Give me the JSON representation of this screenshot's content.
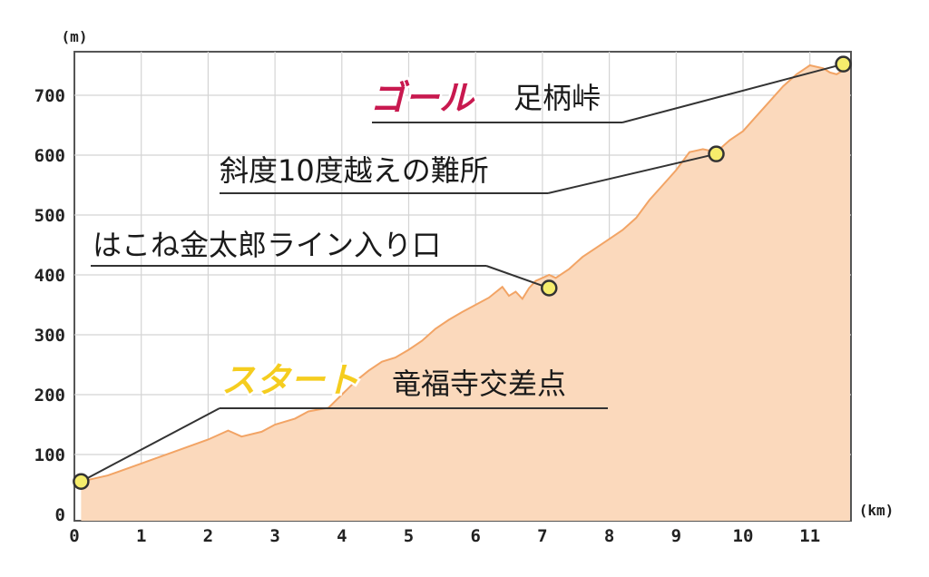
{
  "chart_data": {
    "type": "area",
    "x_unit": "(km)",
    "y_unit": "(m)",
    "xlim": [
      0,
      11.6
    ],
    "ylim": [
      0,
      780
    ],
    "x_ticks": [
      "0",
      "1",
      "2",
      "3",
      "4",
      "5",
      "6",
      "7",
      "8",
      "9",
      "10",
      "11"
    ],
    "y_ticks": [
      "0",
      "100",
      "200",
      "300",
      "400",
      "500",
      "600",
      "700"
    ],
    "grid": true,
    "fill_color": "#fbd9bc",
    "line_color": "#f2a465",
    "profile": {
      "x": [
        0.1,
        0.5,
        1.0,
        1.5,
        2.0,
        2.3,
        2.5,
        2.8,
        3.0,
        3.3,
        3.5,
        3.8,
        4.0,
        4.2,
        4.4,
        4.6,
        4.8,
        5.0,
        5.2,
        5.4,
        5.6,
        5.8,
        6.0,
        6.2,
        6.4,
        6.5,
        6.6,
        6.7,
        6.8,
        6.9,
        7.0,
        7.1,
        7.2,
        7.4,
        7.6,
        7.8,
        8.0,
        8.2,
        8.4,
        8.6,
        8.8,
        9.0,
        9.2,
        9.4,
        9.6,
        9.8,
        10.0,
        10.2,
        10.4,
        10.6,
        10.8,
        11.0,
        11.2,
        11.3,
        11.4,
        11.5,
        11.6
      ],
      "y": [
        55,
        65,
        85,
        105,
        125,
        140,
        130,
        138,
        150,
        160,
        172,
        178,
        200,
        222,
        240,
        255,
        262,
        275,
        290,
        310,
        325,
        338,
        350,
        362,
        380,
        365,
        372,
        360,
        378,
        390,
        395,
        400,
        395,
        410,
        430,
        445,
        460,
        475,
        495,
        525,
        550,
        575,
        605,
        610,
        605,
        625,
        640,
        665,
        690,
        715,
        735,
        750,
        745,
        738,
        735,
        742,
        745
      ]
    },
    "points": [
      {
        "x": 0.1,
        "y": 55,
        "label": "竜福寺交差点",
        "tag": "スタート",
        "tag_color": "#f5cd1f"
      },
      {
        "x": 7.1,
        "y": 378,
        "label": "はこね金太郎ライン入り口"
      },
      {
        "x": 9.6,
        "y": 602,
        "label": "斜度10度越えの難所"
      },
      {
        "x": 11.5,
        "y": 752,
        "label": "足柄峠",
        "tag": "ゴール",
        "tag_color": "#c8194f"
      }
    ],
    "point_color": "#f6ed6c"
  }
}
